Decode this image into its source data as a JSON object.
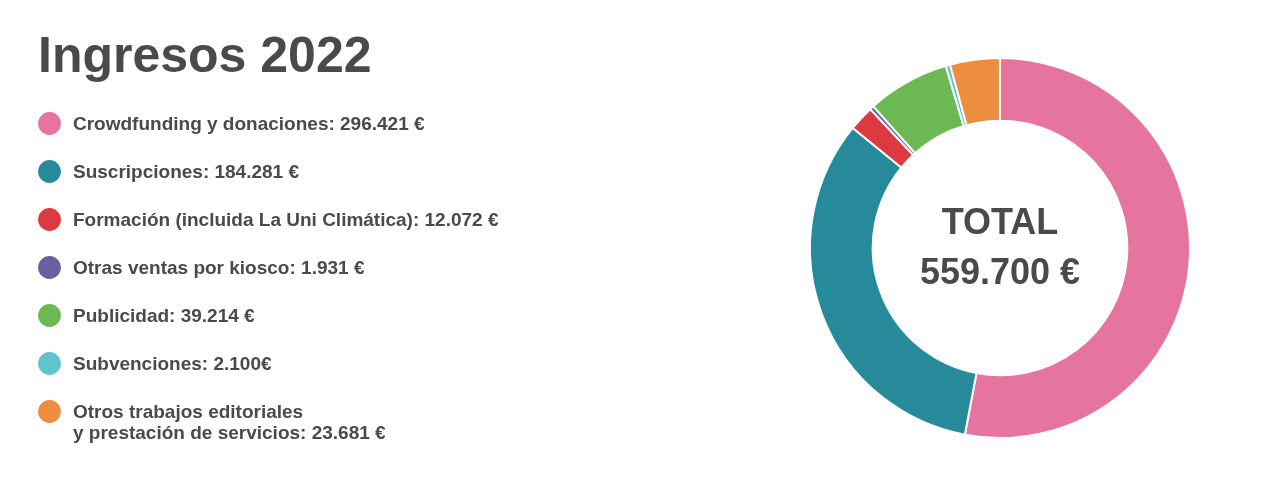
{
  "chart_data": {
    "type": "donut",
    "title": "Ingresos 2022",
    "categories": [
      "Crowdfunding y donaciones",
      "Suscripciones",
      "Formación (incluida La Uni Climática)",
      "Otras ventas por kiosco",
      "Publicidad",
      "Subvenciones",
      "Otros trabajos editoriales\ny prestación de servicios"
    ],
    "values": [
      296421,
      184281,
      12072,
      1931,
      39214,
      2100,
      23681
    ],
    "value_labels": [
      "296.421 €",
      "184.281 €",
      "12.072 €",
      "1.931 €",
      "39.214 €",
      "2.100€",
      "23.681 €"
    ],
    "colors": [
      "#e5749f",
      "#268a9a",
      "#dc3a40",
      "#6c5fa0",
      "#6cb853",
      "#5fc4cc",
      "#ec8d3f"
    ],
    "annotations": [
      "TOTAL",
      "559.700 €"
    ],
    "legend": "left"
  }
}
